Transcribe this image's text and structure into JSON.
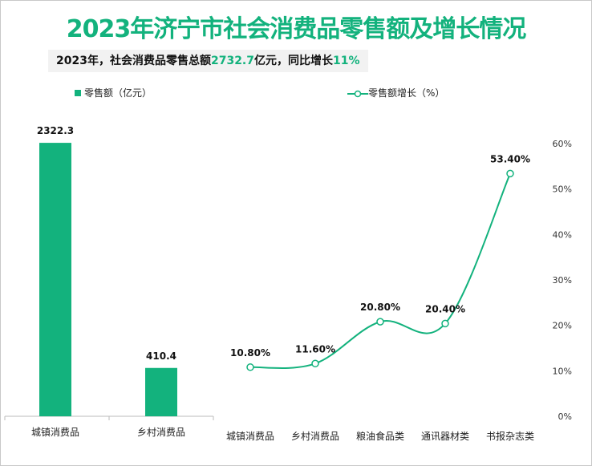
{
  "title": "2023年济宁市社会消费品零售额及增长情况",
  "subtitle": {
    "prefix": "2023年，社会消费品零售总额",
    "total": "2732.7",
    "mid": "亿元，同比增长",
    "growth": "11%"
  },
  "colors": {
    "accent": "#13b27d"
  },
  "chart_data": [
    {
      "type": "bar",
      "legend": "零售额（亿元）",
      "legend_position": "top-left",
      "categories": [
        "城镇消费品",
        "乡村消费品"
      ],
      "values": [
        2322.3,
        410.4
      ],
      "data_labels": [
        "2322.3",
        "410.4"
      ],
      "ylim": [
        0,
        2500
      ],
      "grid": false
    },
    {
      "type": "line",
      "legend": "零售额增长（%）",
      "legend_position": "top-right",
      "categories": [
        "城镇消费品",
        "乡村消费品",
        "粮油食品类",
        "通讯器材类",
        "书报杂志类"
      ],
      "values": [
        10.8,
        11.6,
        20.8,
        20.4,
        53.4
      ],
      "data_labels": [
        "10.80%",
        "11.60%",
        "20.80%",
        "20.40%",
        "53.40%"
      ],
      "ylim": [
        0,
        60
      ],
      "yticks": [
        "0%",
        "10%",
        "20%",
        "30%",
        "40%",
        "50%",
        "60%"
      ],
      "grid": false
    }
  ]
}
